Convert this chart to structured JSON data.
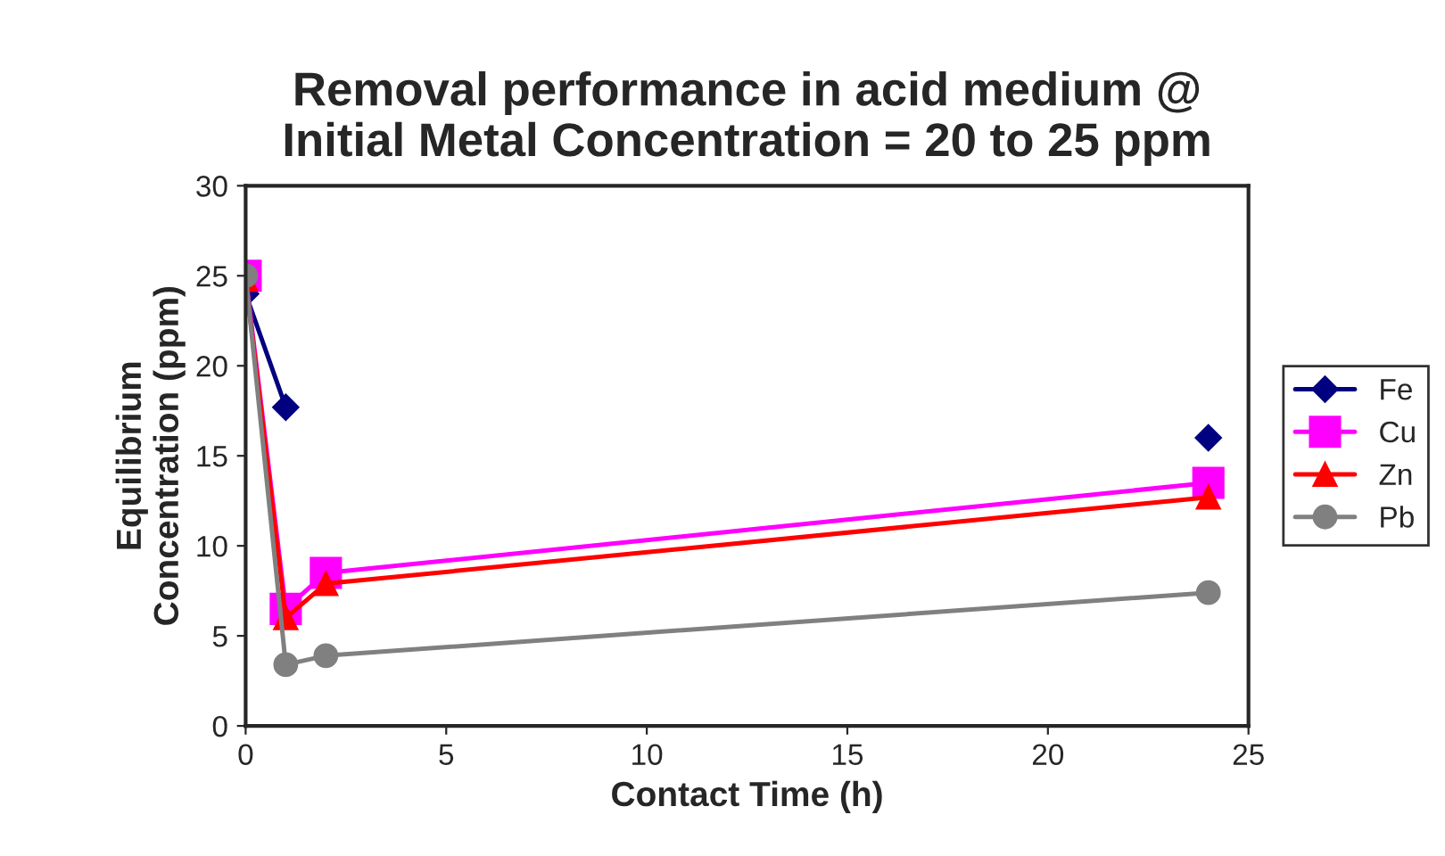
{
  "chart_data": {
    "type": "line",
    "title": "Removal performance in acid medium @\nInitial Metal Concentration = 20 to 25 ppm",
    "xlabel": "Contact Time (h)",
    "ylabel": "Equilibrium\nConcentration (ppm)",
    "x": [
      0,
      1,
      2,
      24
    ],
    "series": [
      {
        "name": "Fe",
        "color": "#000080",
        "marker": "diamond",
        "values": [
          24,
          17.7,
          null,
          16
        ]
      },
      {
        "name": "Cu",
        "color": "#ff00ff",
        "marker": "square",
        "values": [
          25,
          6.5,
          8.5,
          13.5
        ]
      },
      {
        "name": "Zn",
        "color": "#ff0000",
        "marker": "triangle",
        "values": [
          24.8,
          6,
          7.9,
          12.7
        ]
      },
      {
        "name": "Pb",
        "color": "#808080",
        "marker": "circle",
        "values": [
          25,
          3.4,
          3.9,
          7.4
        ]
      }
    ],
    "xlim": [
      0,
      25
    ],
    "xticks": [
      0,
      5,
      10,
      15,
      20,
      25
    ],
    "ylim": [
      0,
      30
    ],
    "yticks": [
      0,
      5,
      10,
      15,
      20,
      25,
      30
    ],
    "grid": false,
    "legend": "right",
    "line_style": "solid"
  }
}
